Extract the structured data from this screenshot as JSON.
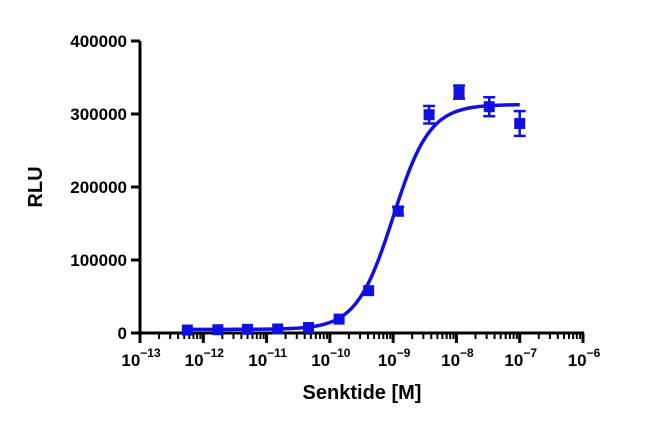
{
  "chart_data": {
    "type": "scatter",
    "xlabel": "Senktide [M]",
    "ylabel": "RLU",
    "x_scale": "log10",
    "xlim": [
      1e-13,
      1e-06
    ],
    "ylim": [
      0,
      400000
    ],
    "x_major_tick_exponents": [
      -13,
      -12,
      -11,
      -10,
      -9,
      -8,
      -7,
      -6
    ],
    "x_tick_base": "10",
    "y_ticks": [
      "0",
      "100000",
      "200000",
      "300000",
      "400000"
    ],
    "grid": false,
    "series": [
      {
        "color": "#1010e0",
        "marker": "square",
        "points": [
          {
            "x": 5.6e-13,
            "y": 4000,
            "err": 0
          },
          {
            "x": 1.7e-12,
            "y": 4500,
            "err": 0
          },
          {
            "x": 5e-12,
            "y": 5000,
            "err": 0
          },
          {
            "x": 1.5e-11,
            "y": 5500,
            "err": 0
          },
          {
            "x": 4.6e-11,
            "y": 7500,
            "err": 0
          },
          {
            "x": 1.4e-10,
            "y": 19000,
            "err": 0
          },
          {
            "x": 4.1e-10,
            "y": 58000,
            "err": 0
          },
          {
            "x": 1.2e-09,
            "y": 167000,
            "err": 6000
          },
          {
            "x": 3.7e-09,
            "y": 299000,
            "err": 12000
          },
          {
            "x": 1.1e-08,
            "y": 330000,
            "err": 9000
          },
          {
            "x": 3.3e-08,
            "y": 310000,
            "err": 13000
          },
          {
            "x": 1e-07,
            "y": 287000,
            "err": 17000
          }
        ],
        "fit": {
          "model": "sigmoidal dose-response",
          "bottom": 5000,
          "top": 313000,
          "logEC50": -9.0,
          "hill": 1.5
        }
      }
    ]
  }
}
